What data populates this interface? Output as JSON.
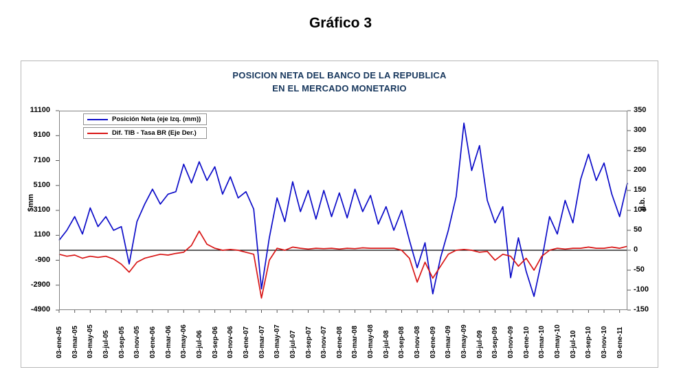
{
  "page_title": "Gráfico 3",
  "chart_data": {
    "type": "line",
    "title": "POSICION NETA DEL BANCO DE LA REPUBLICA",
    "subtitle": "EN EL MERCADO MONETARIO",
    "grid": "off",
    "legend_position": "top-left-inside",
    "left_axis": {
      "label": "$mm",
      "min": -4900,
      "max": 11100,
      "ticks": [
        "11100",
        "9100",
        "7100",
        "5100",
        "3100",
        "1100",
        "-900",
        "-2900",
        "-4900"
      ]
    },
    "right_axis": {
      "label": "p.b.",
      "min": -150,
      "max": 350,
      "ticks": [
        "350",
        "300",
        "250",
        "200",
        "150",
        "100",
        "50",
        "0",
        "-50",
        "-100",
        "-150"
      ]
    },
    "x_axis": {
      "months_per_tick": 2,
      "sampling": "monthly estimates from ene-2005 to feb-2011",
      "tick_labels": [
        "03-ene-05",
        "03-mar-05",
        "03-may-05",
        "03-jul-05",
        "03-sep-05",
        "03-nov-05",
        "03-ene-06",
        "03-mar-06",
        "03-may-06",
        "03-jul-06",
        "03-sep-06",
        "03-nov-06",
        "03-ene-07",
        "03-mar-07",
        "03-may-07",
        "03-jul-07",
        "03-sep-07",
        "03-nov-07",
        "03-ene-08",
        "03-mar-08",
        "03-may-08",
        "03-jul-08",
        "03-sep-08",
        "03-nov-08",
        "03-ene-09",
        "03-mar-09",
        "03-may-09",
        "03-jul-09",
        "03-sep-09",
        "03-nov-09",
        "03-ene-10",
        "03-mar-10",
        "03-may-10",
        "03-jul-10",
        "03-sep-10",
        "03-nov-10",
        "03-ene-11"
      ]
    },
    "legend": [
      {
        "label": "Posición Neta  (eje Izq. (mm))",
        "color": "#0a0ac8"
      },
      {
        "label": "Dif. TIB - Tasa BR (Eje Der.)",
        "color": "#d81414"
      }
    ],
    "zero_line": {
      "axis": "right",
      "value": 0,
      "color": "#000000"
    },
    "series": [
      {
        "name": "Posición Neta (eje Izq. (mm))",
        "axis": "left",
        "color": "#0a0ac8",
        "values": [
          700,
          1500,
          2600,
          1200,
          3300,
          1800,
          2600,
          1500,
          1800,
          -1200,
          2200,
          3600,
          4800,
          3600,
          4400,
          4600,
          6800,
          5300,
          7000,
          5500,
          6600,
          4400,
          5800,
          4100,
          4600,
          3200,
          -3200,
          900,
          4100,
          2200,
          5400,
          3000,
          4700,
          2400,
          4700,
          2600,
          4500,
          2500,
          4800,
          3000,
          4300,
          2000,
          3400,
          1500,
          3100,
          700,
          -1500,
          500,
          -3600,
          -700,
          1500,
          4200,
          10100,
          6300,
          8300,
          3900,
          2100,
          3400,
          -2300,
          900,
          -1800,
          -3800,
          -900,
          2600,
          1200,
          3900,
          2100,
          5600,
          7600,
          5500,
          6900,
          4400,
          2600,
          5300
        ]
      },
      {
        "name": "Dif. TIB - Tasa BR (Eje Der.)",
        "axis": "right",
        "color": "#d81414",
        "values": [
          -10,
          -15,
          -12,
          -20,
          -15,
          -18,
          -15,
          -22,
          -35,
          -55,
          -30,
          -20,
          -15,
          -10,
          -12,
          -8,
          -5,
          12,
          48,
          15,
          5,
          0,
          2,
          0,
          -5,
          -10,
          -120,
          -25,
          5,
          0,
          8,
          5,
          3,
          5,
          4,
          5,
          3,
          5,
          4,
          6,
          5,
          5,
          5,
          5,
          0,
          -20,
          -80,
          -30,
          -70,
          -40,
          -10,
          0,
          2,
          0,
          -5,
          -3,
          -25,
          -10,
          -15,
          -40,
          -20,
          -50,
          -15,
          0,
          5,
          3,
          5,
          5,
          8,
          5,
          5,
          8,
          5,
          10
        ]
      }
    ]
  }
}
